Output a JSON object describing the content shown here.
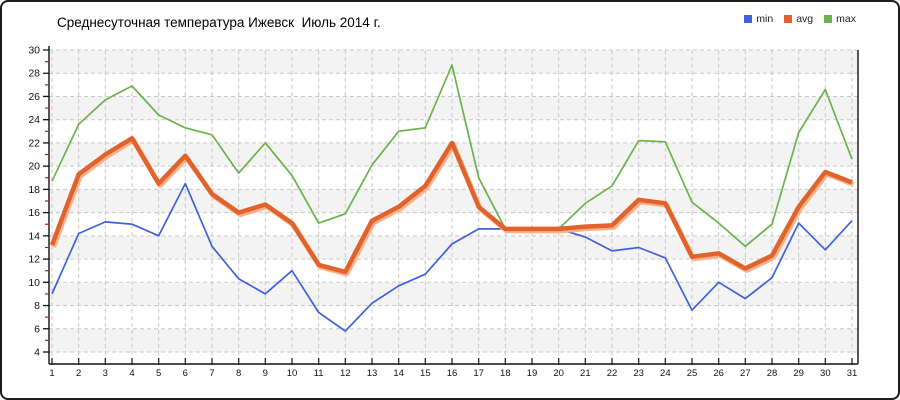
{
  "chart_data": {
    "type": "line",
    "title": "Среднесуточная температура Ижевск  Июль 2014 г.",
    "x_ticks": [
      1,
      2,
      3,
      4,
      5,
      6,
      7,
      8,
      9,
      10,
      11,
      12,
      13,
      14,
      15,
      16,
      17,
      18,
      19,
      20,
      21,
      22,
      23,
      24,
      25,
      26,
      27,
      28,
      29,
      30,
      31
    ],
    "y_ticks": [
      30,
      28,
      26,
      24,
      22,
      20,
      18,
      16,
      14,
      12,
      10,
      8,
      6,
      4
    ],
    "ylim": [
      4,
      30
    ],
    "grid": "dashed, vertical line per day, horizontal line per 2 degrees, alternating shaded bands",
    "legend_position": "top-right",
    "legend": [
      {
        "label": "min",
        "color": "#3f62d8"
      },
      {
        "label": "avg",
        "color": "#e2622b"
      },
      {
        "label": "max",
        "color": "#6cb24c"
      }
    ],
    "series": [
      {
        "name": "min",
        "values": [
          9.0,
          14.2,
          15.2,
          15.0,
          14.0,
          18.5,
          13.1,
          10.3,
          9.0,
          11.0,
          7.4,
          5.8,
          8.2,
          9.7,
          10.7,
          13.3,
          14.6,
          14.6,
          14.6,
          14.6,
          13.9,
          12.7,
          13.0,
          12.1,
          7.6,
          10.0,
          8.6,
          10.4,
          15.1,
          12.8,
          15.3
        ]
      },
      {
        "name": "avg",
        "values": [
          13.2,
          19.3,
          21.0,
          22.4,
          18.5,
          20.9,
          17.6,
          16.0,
          16.7,
          15.1,
          11.5,
          10.9,
          15.3,
          16.5,
          18.3,
          22.0,
          16.5,
          14.6,
          14.6,
          14.6,
          14.8,
          14.9,
          17.1,
          16.8,
          12.2,
          12.5,
          11.2,
          12.3,
          16.5,
          19.5,
          18.6
        ]
      },
      {
        "name": "max",
        "values": [
          18.7,
          23.6,
          25.7,
          26.9,
          24.4,
          23.3,
          22.7,
          19.4,
          22.0,
          19.2,
          15.1,
          15.9,
          20.1,
          23.0,
          23.3,
          28.7,
          19.0,
          14.6,
          14.6,
          14.6,
          16.8,
          18.3,
          22.2,
          22.1,
          16.9,
          15.1,
          13.1,
          15.0,
          22.9,
          26.6,
          20.6
        ]
      }
    ],
    "colors": {
      "min_line": "#3f62d8",
      "avg_line": "#e2622b",
      "avg_halo": "#f7b28c",
      "max_line": "#6cb24c",
      "grid_line": "#c9c9c9",
      "band_fill": "#f3f3f3",
      "axis_line": "#111111",
      "minor_tick": "#cc1111",
      "tick_label": "#111111"
    }
  }
}
